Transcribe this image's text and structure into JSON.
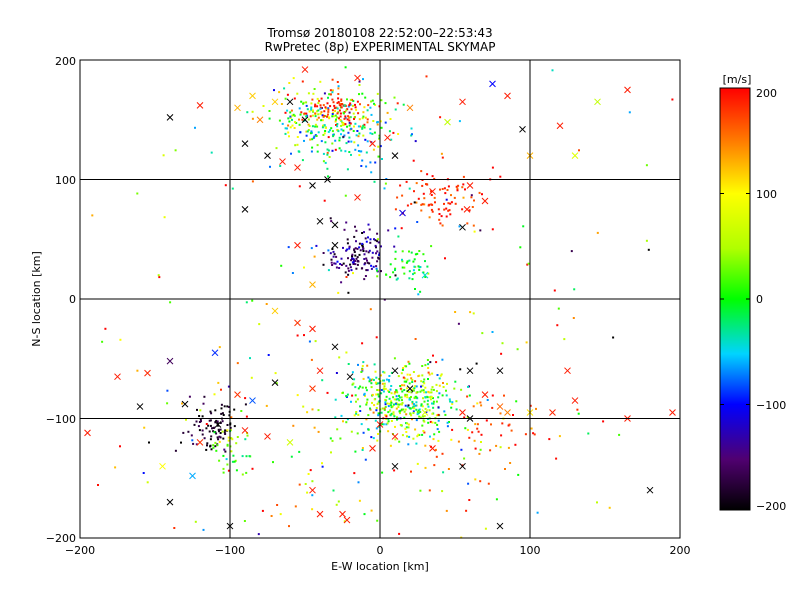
{
  "chart_data": {
    "type": "scatter",
    "title": "Tromsø 20180108 22:52:00–22:53:43",
    "subtitle": "RwPretec (8p) EXPERIMENTAL SKYMAP",
    "xlabel": "E-W location [km]",
    "ylabel": "N-S location [km]",
    "xlim": [
      -200,
      200
    ],
    "ylim": [
      -200,
      200
    ],
    "x_ticks": [
      "−200",
      "−100",
      "0",
      "100",
      "200"
    ],
    "y_ticks": [
      "200",
      "100",
      "0",
      "−100",
      "−200"
    ],
    "grid": true,
    "colorbar": {
      "label": "[m/s]",
      "range": [
        -200,
        200
      ],
      "ticks": [
        "200",
        "100",
        "0",
        "−100",
        "−200"
      ],
      "colormap": "rainbow: black (−200) → purple → blue (−100) → cyan → green (0) → yellow (100) → orange → red (200)"
    },
    "clusters": [
      {
        "region": "north",
        "cx": -30,
        "cy": 152,
        "sx": 22,
        "sy": 14,
        "n": 260,
        "vmean": 40,
        "vsd": 90
      },
      {
        "region": "north-red-core",
        "cx": -30,
        "cy": 158,
        "sx": 14,
        "sy": 6,
        "n": 70,
        "vmean": 185,
        "vsd": 15
      },
      {
        "region": "north-cyan-tail",
        "cx": -20,
        "cy": 130,
        "sx": 20,
        "sy": 14,
        "n": 80,
        "vmean": -40,
        "vsd": 30
      },
      {
        "region": "north-east",
        "cx": 42,
        "cy": 85,
        "sx": 15,
        "sy": 12,
        "n": 90,
        "vmean": 185,
        "vsd": 18
      },
      {
        "region": "centre",
        "cx": -15,
        "cy": 36,
        "sx": 10,
        "sy": 12,
        "n": 140,
        "vmean": -150,
        "vsd": 30
      },
      {
        "region": "centre-green",
        "cx": 15,
        "cy": 25,
        "sx": 10,
        "sy": 8,
        "n": 50,
        "vmean": -10,
        "vsd": 25
      },
      {
        "region": "south-main",
        "cx": 15,
        "cy": -85,
        "sx": 18,
        "sy": 15,
        "n": 420,
        "vmean": 15,
        "vsd": 60
      },
      {
        "region": "south-west",
        "cx": -112,
        "cy": -110,
        "sx": 9,
        "sy": 12,
        "n": 90,
        "vmean": -185,
        "vsd": 20
      },
      {
        "region": "south-west-green",
        "cx": -98,
        "cy": -125,
        "sx": 7,
        "sy": 12,
        "n": 40,
        "vmean": 30,
        "vsd": 30
      },
      {
        "region": "south-scatter",
        "cx": 0,
        "cy": -130,
        "sx": 70,
        "sy": 45,
        "n": 120,
        "vmean": 100,
        "vsd": 90
      },
      {
        "region": "south-east-red",
        "cx": 70,
        "cy": -120,
        "sx": 25,
        "sy": 25,
        "n": 50,
        "vmean": 175,
        "vsd": 20
      },
      {
        "region": "background",
        "cx": 0,
        "cy": 0,
        "sx": 110,
        "sy": 110,
        "n": 170,
        "vmean": 30,
        "vsd": 130
      }
    ],
    "crosses": [
      {
        "x": -175,
        "y": -65,
        "v": 190
      },
      {
        "x": -155,
        "y": -62,
        "v": 185
      },
      {
        "x": -140,
        "y": -52,
        "v": -160
      },
      {
        "x": -110,
        "y": -45,
        "v": -90
      },
      {
        "x": -160,
        "y": -90,
        "v": -200
      },
      {
        "x": -130,
        "y": -88,
        "v": -200
      },
      {
        "x": -108,
        "y": -105,
        "v": -200
      },
      {
        "x": -120,
        "y": -120,
        "v": 180
      },
      {
        "x": -145,
        "y": -140,
        "v": 100
      },
      {
        "x": -140,
        "y": -170,
        "v": -200
      },
      {
        "x": -125,
        "y": -148,
        "v": -60
      },
      {
        "x": -100,
        "y": -190,
        "v": -200
      },
      {
        "x": -90,
        "y": -110,
        "v": 190
      },
      {
        "x": -75,
        "y": -115,
        "v": 190
      },
      {
        "x": -60,
        "y": -120,
        "v": 70
      },
      {
        "x": -85,
        "y": -85,
        "v": -80
      },
      {
        "x": -70,
        "y": -70,
        "v": -200
      },
      {
        "x": -95,
        "y": -80,
        "v": 180
      },
      {
        "x": -45,
        "y": -75,
        "v": 180
      },
      {
        "x": -40,
        "y": -60,
        "v": 190
      },
      {
        "x": -30,
        "y": -40,
        "v": -200
      },
      {
        "x": -55,
        "y": -20,
        "v": 180
      },
      {
        "x": -70,
        "y": -10,
        "v": 120
      },
      {
        "x": -45,
        "y": -25,
        "v": 190
      },
      {
        "x": -20,
        "y": -65,
        "v": -200
      },
      {
        "x": 10,
        "y": -60,
        "v": -200
      },
      {
        "x": 20,
        "y": -75,
        "v": -200
      },
      {
        "x": 0,
        "y": -105,
        "v": 190
      },
      {
        "x": 10,
        "y": -115,
        "v": 190
      },
      {
        "x": -5,
        "y": -125,
        "v": 190
      },
      {
        "x": 30,
        "y": -95,
        "v": 80
      },
      {
        "x": 55,
        "y": -95,
        "v": 190
      },
      {
        "x": 60,
        "y": -100,
        "v": -200
      },
      {
        "x": 70,
        "y": -80,
        "v": 190
      },
      {
        "x": 80,
        "y": -90,
        "v": 160
      },
      {
        "x": 85,
        "y": -95,
        "v": 150
      },
      {
        "x": 100,
        "y": -95,
        "v": 110
      },
      {
        "x": 115,
        "y": -95,
        "v": 185
      },
      {
        "x": 130,
        "y": -85,
        "v": 190
      },
      {
        "x": 165,
        "y": -100,
        "v": 190
      },
      {
        "x": 195,
        "y": -95,
        "v": 190
      },
      {
        "x": 60,
        "y": -60,
        "v": -200
      },
      {
        "x": 80,
        "y": -60,
        "v": -200
      },
      {
        "x": 125,
        "y": -60,
        "v": 190
      },
      {
        "x": 55,
        "y": -140,
        "v": -200
      },
      {
        "x": 10,
        "y": -140,
        "v": -200
      },
      {
        "x": -45,
        "y": -160,
        "v": 190
      },
      {
        "x": -40,
        "y": -180,
        "v": 190
      },
      {
        "x": -25,
        "y": -180,
        "v": 190
      },
      {
        "x": -22,
        "y": -185,
        "v": 190
      },
      {
        "x": 80,
        "y": -190,
        "v": -200
      },
      {
        "x": 180,
        "y": -160,
        "v": -200
      },
      {
        "x": -195,
        "y": -112,
        "v": 190
      },
      {
        "x": 35,
        "y": -125,
        "v": 190
      },
      {
        "x": -140,
        "y": 152,
        "v": -200
      },
      {
        "x": -120,
        "y": 162,
        "v": 190
      },
      {
        "x": -95,
        "y": 160,
        "v": 130
      },
      {
        "x": -80,
        "y": 150,
        "v": 150
      },
      {
        "x": -70,
        "y": 165,
        "v": 120
      },
      {
        "x": -60,
        "y": 165,
        "v": -200
      },
      {
        "x": -50,
        "y": 150,
        "v": -200
      },
      {
        "x": -90,
        "y": 130,
        "v": -200
      },
      {
        "x": -75,
        "y": 120,
        "v": -200
      },
      {
        "x": -55,
        "y": 110,
        "v": 190
      },
      {
        "x": -65,
        "y": 115,
        "v": 190
      },
      {
        "x": -85,
        "y": 170,
        "v": 120
      },
      {
        "x": -5,
        "y": 130,
        "v": 190
      },
      {
        "x": 10,
        "y": 120,
        "v": -200
      },
      {
        "x": 5,
        "y": 135,
        "v": 190
      },
      {
        "x": 20,
        "y": 160,
        "v": 150
      },
      {
        "x": 45,
        "y": 148,
        "v": 60
      },
      {
        "x": 55,
        "y": 165,
        "v": 190
      },
      {
        "x": -50,
        "y": 192,
        "v": 190
      },
      {
        "x": -15,
        "y": 185,
        "v": 190
      },
      {
        "x": 85,
        "y": 170,
        "v": 190
      },
      {
        "x": 95,
        "y": 142,
        "v": -200
      },
      {
        "x": 100,
        "y": 120,
        "v": 130
      },
      {
        "x": 120,
        "y": 145,
        "v": 190
      },
      {
        "x": 130,
        "y": 120,
        "v": 80
      },
      {
        "x": 145,
        "y": 165,
        "v": 60
      },
      {
        "x": 165,
        "y": 175,
        "v": 190
      },
      {
        "x": 75,
        "y": 180,
        "v": -100
      },
      {
        "x": -45,
        "y": 95,
        "v": -200
      },
      {
        "x": -35,
        "y": 100,
        "v": -200
      },
      {
        "x": -40,
        "y": 65,
        "v": -200
      },
      {
        "x": -30,
        "y": 62,
        "v": -200
      },
      {
        "x": -90,
        "y": 75,
        "v": -200
      },
      {
        "x": -55,
        "y": 45,
        "v": 190
      },
      {
        "x": -30,
        "y": 45,
        "v": -200
      },
      {
        "x": 15,
        "y": 72,
        "v": -110
      },
      {
        "x": 55,
        "y": 60,
        "v": -200
      },
      {
        "x": 58,
        "y": 75,
        "v": 190
      },
      {
        "x": 70,
        "y": 82,
        "v": 190
      },
      {
        "x": 60,
        "y": 95,
        "v": 190
      },
      {
        "x": 35,
        "y": 90,
        "v": 190
      },
      {
        "x": -15,
        "y": 85,
        "v": 190
      },
      {
        "x": -45,
        "y": 12,
        "v": 130
      },
      {
        "x": 30,
        "y": 20,
        "v": -40
      }
    ]
  }
}
